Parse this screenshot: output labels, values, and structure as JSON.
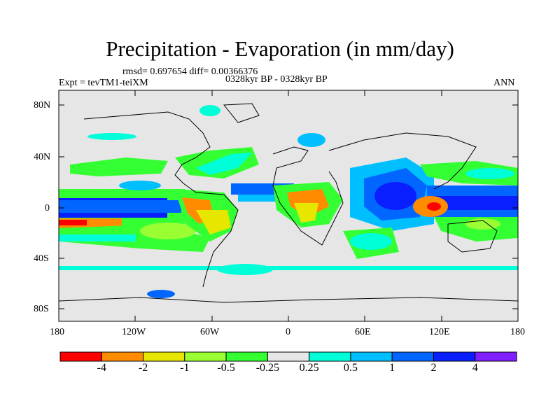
{
  "title": "Precipitation - Evaporation (in mm/day)",
  "stats": "rmsd= 0.697654 diff= 0.00366376",
  "experiment": "Expt = tevTM1-teiXM",
  "period": "0328kyr BP - 0328kyr BP",
  "season": "ANN",
  "axes": {
    "y_ticks": [
      "80N",
      "40N",
      "0",
      "40S",
      "80S"
    ],
    "x_ticks": [
      "180",
      "120W",
      "60W",
      "0",
      "60E",
      "120E",
      "180"
    ]
  },
  "colorbar": {
    "colors": [
      "#ff0000",
      "#ff8c00",
      "#e6e600",
      "#99ff33",
      "#33ff33",
      "#e6e6e6",
      "#00ffd9",
      "#00bfff",
      "#0066ff",
      "#0a1fff",
      "#7f1fff"
    ],
    "labels": [
      "-4",
      "-2",
      "-1",
      "-0.5",
      "-0.25",
      "0.25",
      "0.5",
      "1",
      "2",
      "4"
    ]
  },
  "palette": {
    "background": "#e6e6e6",
    "coast": "#000000"
  }
}
